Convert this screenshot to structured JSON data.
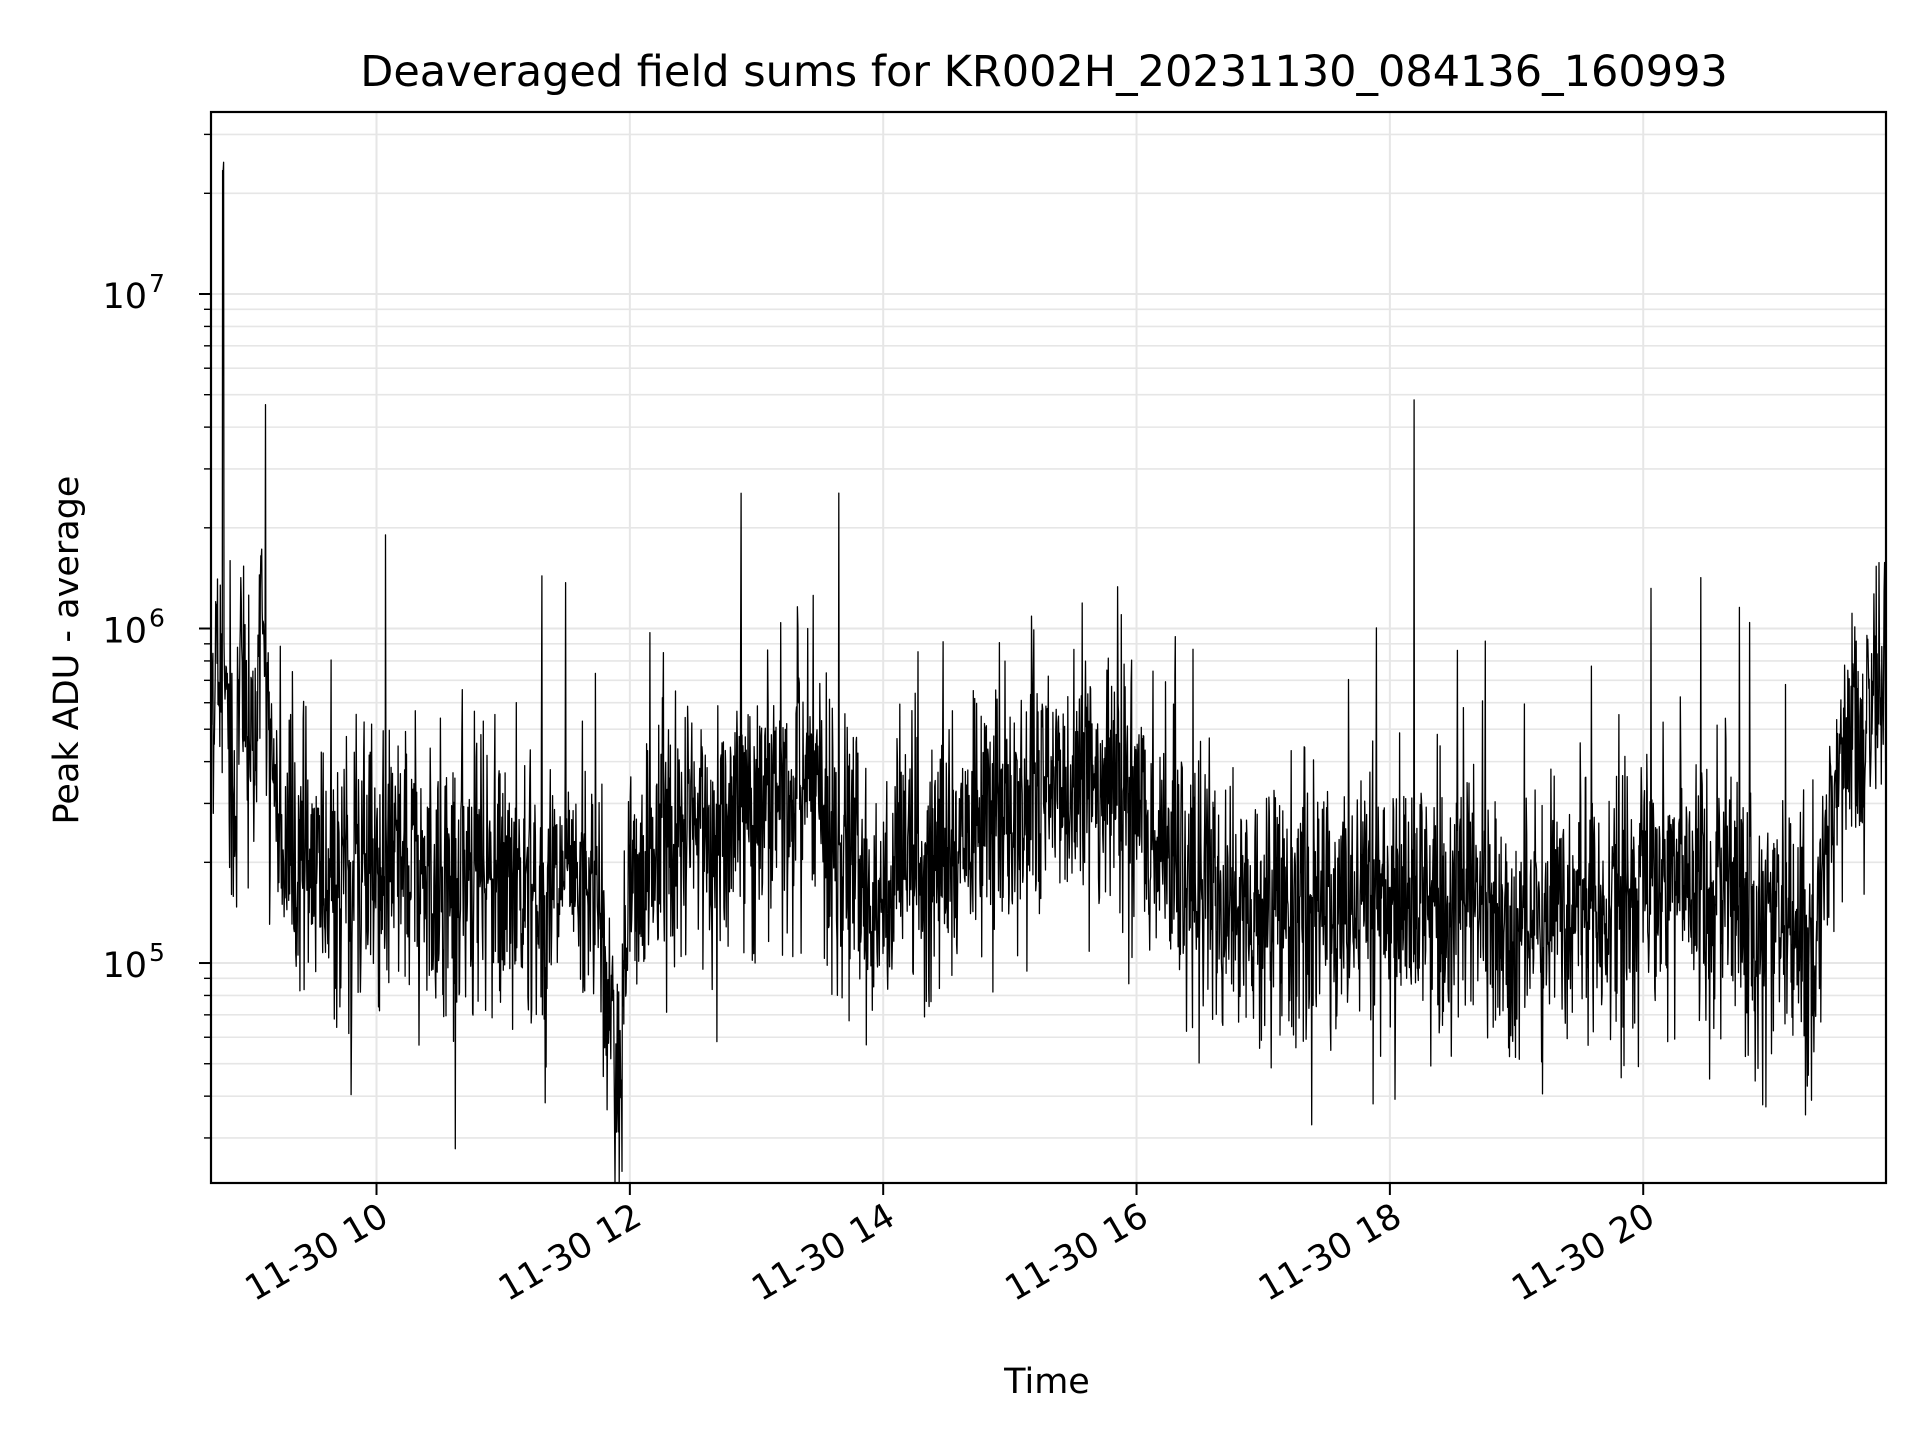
{
  "chart_data": {
    "type": "line",
    "title": "Deaveraged field sums for KR002H_20231130_084136_160993",
    "xlabel": "Time",
    "ylabel": "Peak ADU - average",
    "x_scale": "time",
    "y_scale": "log",
    "xlim": [
      "2023-11-30T08:41:36",
      "2023-11-30T21:55:00"
    ],
    "ylim": [
      22000,
      35000000
    ],
    "grid": true,
    "line_color": "#000000",
    "x_ticks": [
      {
        "value": "2023-11-30T10:00",
        "label": "11-30 10"
      },
      {
        "value": "2023-11-30T12:00",
        "label": "11-30 12"
      },
      {
        "value": "2023-11-30T14:00",
        "label": "11-30 14"
      },
      {
        "value": "2023-11-30T16:00",
        "label": "11-30 16"
      },
      {
        "value": "2023-11-30T18:00",
        "label": "11-30 18"
      },
      {
        "value": "2023-11-30T20:00",
        "label": "11-30 20"
      }
    ],
    "y_ticks": [
      {
        "value": 100000,
        "base": "10",
        "exp": "5"
      },
      {
        "value": 1000000,
        "base": "10",
        "exp": "6"
      },
      {
        "value": 10000000,
        "base": "10",
        "exp": "7"
      }
    ],
    "series": [
      {
        "values_note_hidden": "",
        "x": [
          "2023-11-30T08:41:36",
          "2023-11-30T08:44",
          "2023-11-30T08:47",
          "2023-11-30T08:50",
          "2023-11-30T08:53",
          "2023-11-30T08:56",
          "2023-11-30T08:59",
          "2023-11-30T09:02",
          "2023-11-30T09:05",
          "2023-11-30T09:10",
          "2023-11-30T09:15",
          "2023-11-30T09:20",
          "2023-11-30T09:30",
          "2023-11-30T09:40",
          "2023-11-30T09:50",
          "2023-11-30T10:00",
          "2023-11-30T10:15",
          "2023-11-30T10:30",
          "2023-11-30T10:45",
          "2023-11-30T11:00",
          "2023-11-30T11:15",
          "2023-11-30T11:30",
          "2023-11-30T11:45",
          "2023-11-30T11:55",
          "2023-11-30T12:00",
          "2023-11-30T12:15",
          "2023-11-30T12:30",
          "2023-11-30T12:45",
          "2023-11-30T13:00",
          "2023-11-30T13:15",
          "2023-11-30T13:25",
          "2023-11-30T13:35",
          "2023-11-30T13:50",
          "2023-11-30T14:00",
          "2023-11-30T14:15",
          "2023-11-30T14:30",
          "2023-11-30T14:45",
          "2023-11-30T15:00",
          "2023-11-30T15:15",
          "2023-11-30T15:30",
          "2023-11-30T15:45",
          "2023-11-30T16:00",
          "2023-11-30T16:15",
          "2023-11-30T16:30",
          "2023-11-30T16:45",
          "2023-11-30T17:00",
          "2023-11-30T17:15",
          "2023-11-30T17:30",
          "2023-11-30T17:45",
          "2023-11-30T18:00",
          "2023-11-30T18:15",
          "2023-11-30T18:30",
          "2023-11-30T18:45",
          "2023-11-30T19:00",
          "2023-11-30T19:15",
          "2023-11-30T19:30",
          "2023-11-30T19:45",
          "2023-11-30T20:00",
          "2023-11-30T20:15",
          "2023-11-30T20:30",
          "2023-11-30T20:45",
          "2023-11-30T21:00",
          "2023-11-30T21:10",
          "2023-11-30T21:20",
          "2023-11-30T21:30",
          "2023-11-30T21:40",
          "2023-11-30T21:50",
          "2023-11-30T21:55"
        ],
        "values": [
          600000,
          900000,
          25000000,
          400000,
          300000,
          800000,
          500000,
          350000,
          1800000,
          300000,
          250000,
          220000,
          200000,
          180000,
          190000,
          190000,
          185000,
          180000,
          175000,
          170000,
          165000,
          160000,
          170000,
          35000,
          180000,
          200000,
          240000,
          280000,
          300000,
          320000,
          350000,
          250000,
          180000,
          160000,
          180000,
          220000,
          260000,
          300000,
          340000,
          380000,
          360000,
          300000,
          200000,
          160000,
          150000,
          140000,
          145000,
          150000,
          155000,
          160000,
          150000,
          145000,
          140000,
          130000,
          150000,
          160000,
          170000,
          175000,
          180000,
          170000,
          150000,
          130000,
          120000,
          110000,
          350000,
          500000,
          550000,
          600000
        ]
      }
    ]
  }
}
